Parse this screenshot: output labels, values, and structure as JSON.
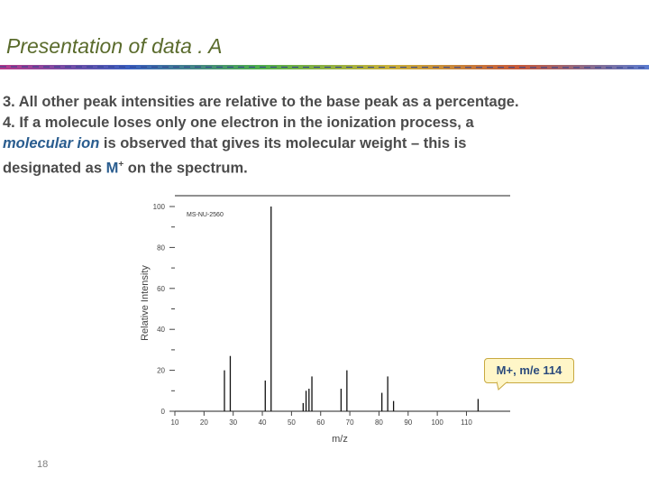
{
  "slide": {
    "title": "Presentation of data  . A",
    "page_number": "18",
    "line3": "3. All other peak intensities are relative to the base peak as a percentage.",
    "line4_a": "4. If a molecule loses only one electron in the ionization process, a",
    "line4_em": "molecular ion",
    "line4_b": " is observed that gives its molecular weight – this is",
    "line4_c": "designated  as ",
    "line4_m": "M",
    "line4_sup": "+",
    "line4_d": " on the spectrum."
  },
  "callout": {
    "text": "M+, m/e 114"
  },
  "colors": {
    "title": "#5a6b2c",
    "text": "#4b4b4b",
    "accent_blue": "#2a5d8f",
    "callout_fill": "#fff6c8"
  },
  "chart_data": {
    "type": "bar",
    "title": "",
    "inset_label": "MS-NU-2560",
    "xlabel": "m/z",
    "ylabel": "Relative Intensity",
    "xlim": [
      10,
      120
    ],
    "ylim": [
      0,
      100
    ],
    "xticks": [
      10,
      20,
      30,
      40,
      50,
      60,
      70,
      80,
      90,
      100,
      110
    ],
    "yticks": [
      0,
      20,
      40,
      60,
      80,
      100
    ],
    "x": [
      27,
      29,
      41,
      43,
      54,
      55,
      56,
      57,
      67,
      69,
      81,
      83,
      85,
      114
    ],
    "values": [
      20,
      27,
      15,
      100,
      4,
      10,
      11,
      17,
      11,
      20,
      9,
      17,
      5,
      6
    ]
  }
}
